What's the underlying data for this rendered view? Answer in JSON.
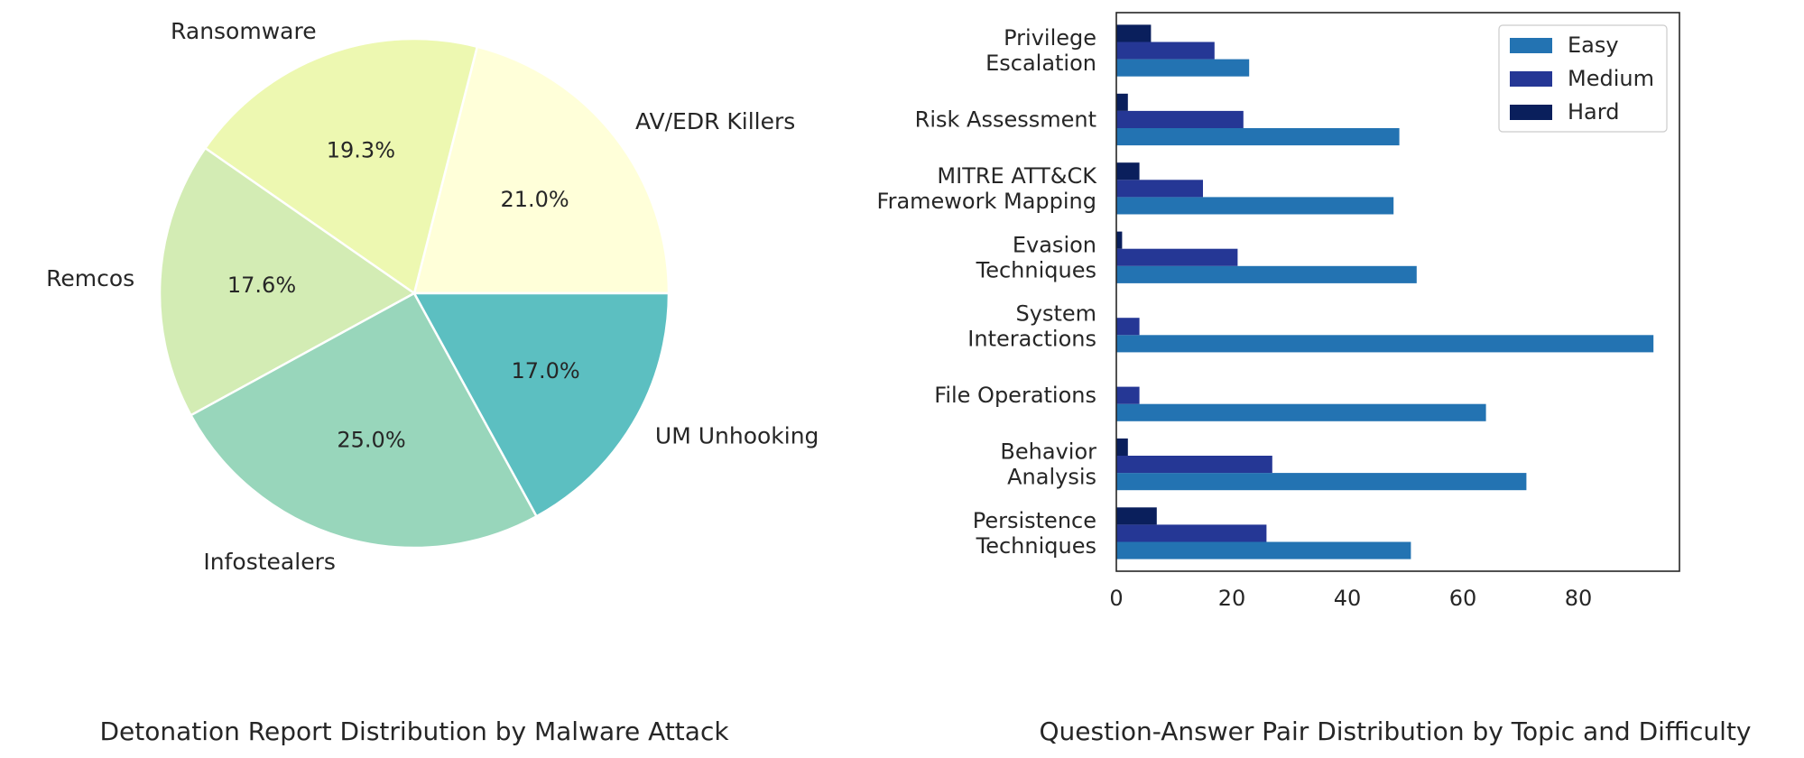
{
  "chart_data": [
    {
      "type": "pie",
      "title": "Detonation Report Distribution by Malware Attack",
      "start_angle_deg": 0,
      "direction": "counterclockwise",
      "slices": [
        {
          "label": "AV/EDR Killers",
          "value": 21.0,
          "pct_label": "21.0%",
          "color": "#ffffd9"
        },
        {
          "label": "Ransomware",
          "value": 19.3,
          "pct_label": "19.3%",
          "color": "#edf8b1"
        },
        {
          "label": "Remcos",
          "value": 17.6,
          "pct_label": "17.6%",
          "color": "#d3ecb4"
        },
        {
          "label": "Infostealers",
          "value": 25.0,
          "pct_label": "25.0%",
          "color": "#98d6bb"
        },
        {
          "label": "UM Unhooking",
          "value": 17.0,
          "pct_label": "17.0%",
          "color": "#5cbfc1"
        }
      ]
    },
    {
      "type": "bar",
      "orientation": "horizontal",
      "title": "Question-Answer Pair Distribution by Topic and Difficulty",
      "xlabel": "",
      "ylabel": "",
      "xlim": [
        0,
        97.5
      ],
      "xticks": [
        0,
        20,
        40,
        60,
        80
      ],
      "grid": false,
      "legend_position": "top-right",
      "categories": [
        [
          "Privilege",
          "Escalation"
        ],
        [
          "Risk Assessment"
        ],
        [
          "MITRE ATT&CK",
          "Framework Mapping"
        ],
        [
          "Evasion",
          "Techniques"
        ],
        [
          "System",
          "Interactions"
        ],
        [
          "File Operations"
        ],
        [
          "Behavior",
          "Analysis"
        ],
        [
          "Persistence",
          "Techniques"
        ]
      ],
      "series": [
        {
          "name": "Easy",
          "color": "#2373b2",
          "values": [
            23,
            49,
            48,
            52,
            93,
            64,
            71,
            51
          ]
        },
        {
          "name": "Medium",
          "color": "#253795",
          "values": [
            17,
            22,
            15,
            21,
            4,
            4,
            27,
            26
          ]
        },
        {
          "name": "Hard",
          "color": "#0a1f5c",
          "values": [
            6,
            2,
            4,
            1,
            0,
            0,
            2,
            7
          ]
        }
      ]
    }
  ]
}
